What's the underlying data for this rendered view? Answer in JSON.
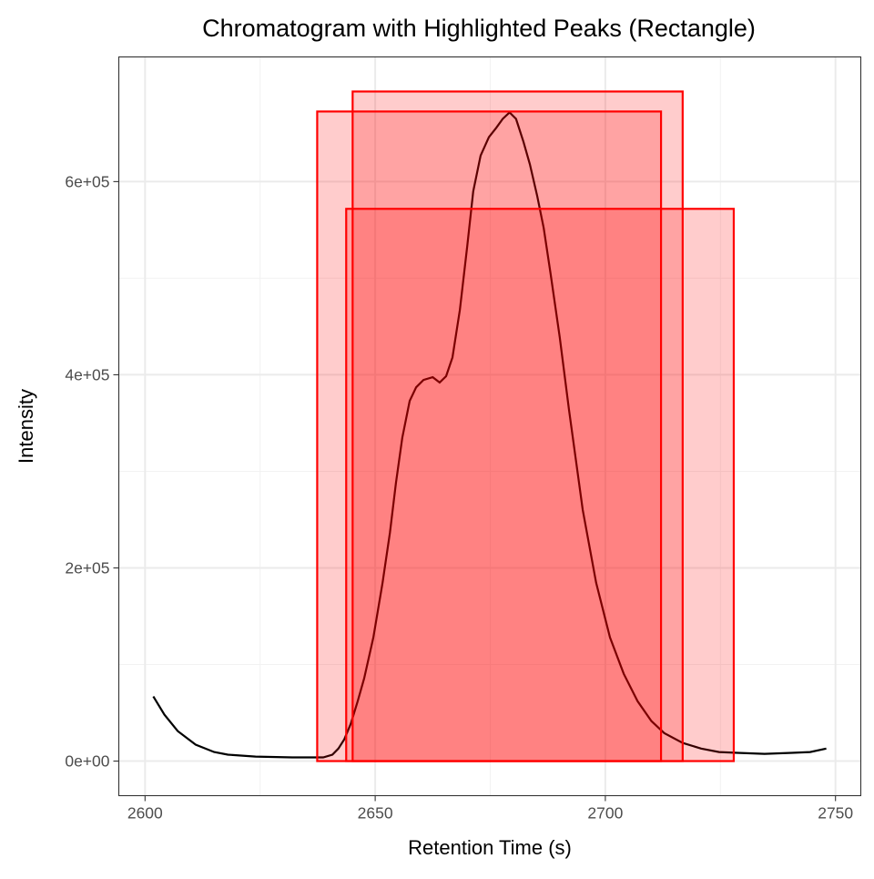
{
  "chart_data": {
    "type": "line",
    "title": "Chromatogram with Highlighted Peaks (Rectangle)",
    "xlabel": "Retention Time (s)",
    "ylabel": "Intensity",
    "xlim": [
      2594.3,
      2755.5
    ],
    "ylim": [
      -35800,
      729100
    ],
    "xticks": [
      2600,
      2650,
      2700,
      2750
    ],
    "xtick_labels": [
      "2600",
      "2650",
      "2700",
      "2750"
    ],
    "yticks": [
      0,
      200000,
      400000,
      600000
    ],
    "ytick_labels": [
      "0e+00",
      "2e+05",
      "4e+05",
      "6e+05"
    ],
    "grid": true,
    "line_color": "#000000",
    "rect_fill": "#ff0000",
    "rect_fill_opacity": 0.2,
    "rect_stroke": "#ff0000",
    "series": [
      {
        "x": [
          2601.8,
          2604.2,
          2607.1,
          2611,
          2615,
          2618,
          2624,
          2632,
          2638.7,
          2640.7,
          2642,
          2643.3,
          2644.7,
          2646.2,
          2647.6,
          2649.6,
          2651.6,
          2653.2,
          2654.5,
          2655.9,
          2657.5,
          2658.9,
          2660.5,
          2662.5,
          2664,
          2665.4,
          2666.8,
          2668.4,
          2670,
          2671.3,
          2672.9,
          2674.7,
          2676.3,
          2677.7,
          2679.2,
          2680.6,
          2682.2,
          2683.6,
          2685.2,
          2686.6,
          2688.1,
          2690.1,
          2692.1,
          2695.1,
          2698,
          2701,
          2704,
          2707,
          2710,
          2712.8,
          2716.8,
          2720.8,
          2724.7,
          2728.7,
          2734.6,
          2740.5,
          2744.5,
          2748
        ],
        "y": [
          66900,
          48000,
          31100,
          17000,
          9400,
          6600,
          4700,
          3800,
          3800,
          6600,
          13000,
          22600,
          38600,
          62000,
          85700,
          128000,
          184600,
          236500,
          288000,
          335000,
          373000,
          387000,
          394700,
          397500,
          392000,
          398500,
          418000,
          467000,
          533000,
          590000,
          627000,
          646000,
          655700,
          665000,
          671700,
          665000,
          641500,
          618000,
          585000,
          552000,
          505000,
          439000,
          363600,
          260000,
          184600,
          128000,
          90400,
          62000,
          41400,
          29000,
          18800,
          13000,
          9400,
          8500,
          7500,
          8500,
          9400,
          13000
        ]
      }
    ],
    "rectangles": [
      {
        "xmin": 2637.4,
        "xmax": 2712.1,
        "ymin": 0,
        "ymax": 672600
      },
      {
        "xmin": 2645.1,
        "xmax": 2716.8,
        "ymin": 0,
        "ymax": 693300
      },
      {
        "xmin": 2643.7,
        "xmax": 2727.9,
        "ymin": 0,
        "ymax": 571800
      }
    ]
  }
}
